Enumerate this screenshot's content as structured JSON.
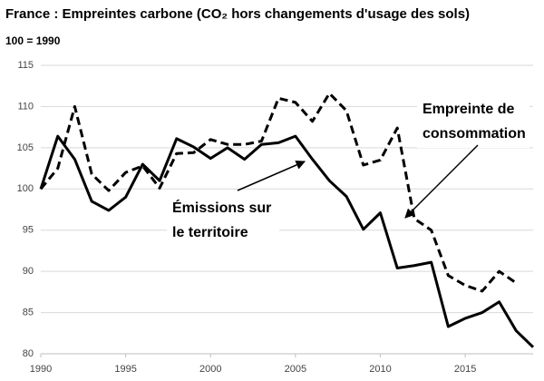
{
  "chart_data": {
    "type": "line",
    "title": "France : Empreintes carbone (CO₂ hors changements d'usage des sols)",
    "subtitle": "100 = 1990",
    "x": [
      1990,
      1991,
      1992,
      1993,
      1994,
      1995,
      1996,
      1997,
      1998,
      1999,
      2000,
      2001,
      2002,
      2003,
      2004,
      2005,
      2006,
      2007,
      2008,
      2009,
      2010,
      2011,
      2012,
      2013,
      2014,
      2015,
      2016,
      2017,
      2018,
      2019
    ],
    "series": [
      {
        "color": "#000000",
        "dash": "solid",
        "values": [
          100,
          106.4,
          103.6,
          98.5,
          97.4,
          99,
          103,
          101,
          106.1,
          105.1,
          103.7,
          105,
          103.6,
          105.4,
          105.6,
          106.4,
          103.6,
          101,
          99.1,
          95.1,
          97.1,
          90.4,
          90.7,
          91.1,
          83.3,
          84.3,
          85,
          86.3,
          82.8,
          80.8
        ]
      },
      {
        "color": "#000000",
        "dash": "dashed",
        "values": [
          100,
          102.5,
          110,
          101.8,
          99.8,
          102,
          102.8,
          100.1,
          104.3,
          104.4,
          106,
          105.4,
          105.4,
          105.8,
          111,
          110.5,
          108.2,
          111.6,
          109.5,
          102.9,
          103.5,
          107.4,
          96.4,
          95,
          89.5,
          88.3,
          87.6,
          90,
          88.6,
          null
        ]
      }
    ],
    "annotations": [
      {
        "lines": [
          "Émissions sur",
          "le territoire"
        ]
      },
      {
        "lines": [
          "Empreinte de",
          "consommation"
        ]
      }
    ],
    "xlim": [
      1990,
      2019
    ],
    "xticks": [
      1990,
      1995,
      2000,
      2005,
      2010,
      2015
    ],
    "ylim": [
      80,
      115
    ],
    "yticks": [
      80,
      85,
      90,
      95,
      100,
      105,
      110,
      115
    ],
    "grid": true
  }
}
